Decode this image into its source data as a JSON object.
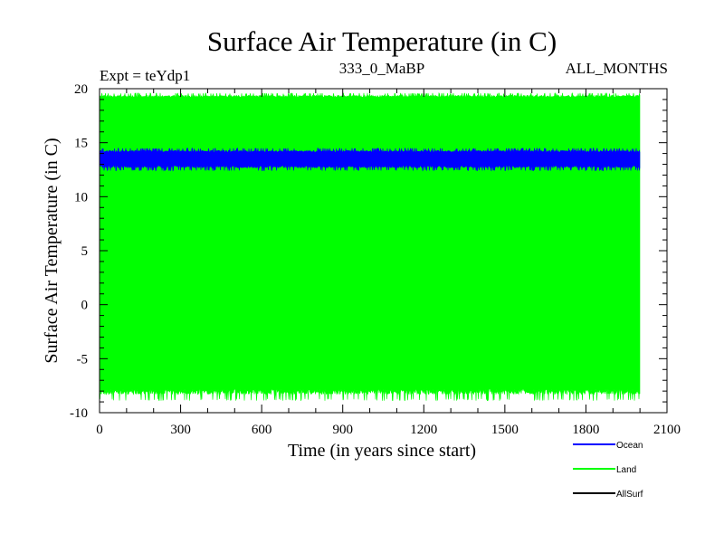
{
  "chart_data": {
    "type": "line",
    "title": "Surface Air Temperature (in C)",
    "header": {
      "left": "Expt = teYdp1",
      "center": "333_0_MaBP",
      "right": "ALL_MONTHS"
    },
    "xlabel": "Time (in years since start)",
    "ylabel": "Surface Air Temperature (in C)",
    "xlim": [
      0,
      2100
    ],
    "ylim": [
      -10,
      20
    ],
    "xticks": [
      0,
      300,
      600,
      900,
      1200,
      1500,
      1800,
      2100
    ],
    "yticks": [
      -10,
      -5,
      0,
      5,
      10,
      15,
      20
    ],
    "x_major_step": 300,
    "x_minor_step": 100,
    "y_major_step": 5,
    "y_minor_step": 1,
    "grid": false,
    "legend_position": "bottom-right, below plot",
    "series": [
      {
        "name": "Land",
        "color": "#00ff00",
        "x_start": 0,
        "x_end": 2000,
        "low_min": -8.9,
        "low_typical": -7.8,
        "high_typical": 19.2,
        "high_max": 19.6
      },
      {
        "name": "Ocean",
        "color": "#0000ff",
        "x_start": 0,
        "x_end": 2000,
        "low_min": 12.4,
        "low_typical": 12.9,
        "high_typical": 14.1,
        "high_max": 14.5
      },
      {
        "name": "AllSurf",
        "color": "#000000",
        "x_start": null,
        "x_end": null
      }
    ],
    "legend": [
      {
        "name": "Ocean",
        "color": "#0000ff"
      },
      {
        "name": "Land",
        "color": "#00ff00"
      },
      {
        "name": "AllSurf",
        "color": "#000000"
      }
    ]
  }
}
